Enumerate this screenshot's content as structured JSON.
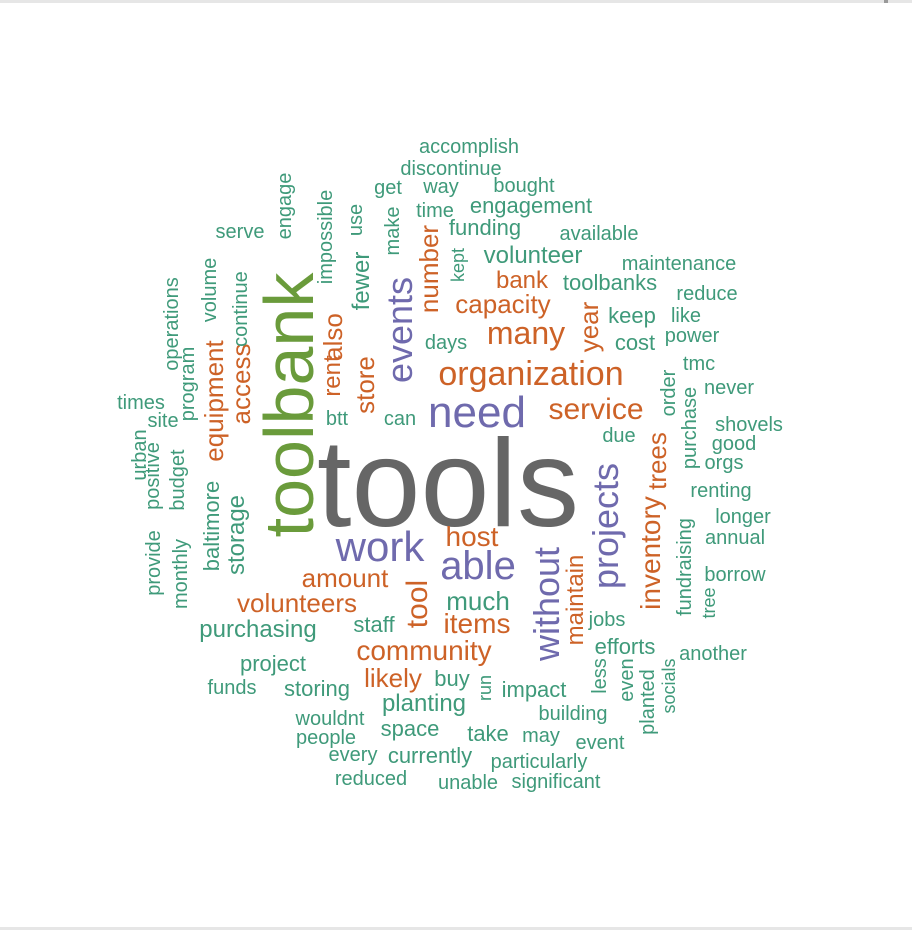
{
  "colors": {
    "top": "#666666",
    "green": "#6a9b3b",
    "purple": "#6f6aad",
    "orange": "#cd6227",
    "teal": "#3f9a7a"
  },
  "words": [
    {
      "text": "tools",
      "color": "top"
    },
    {
      "text": "toolbank",
      "color": "green"
    },
    {
      "text": "need",
      "color": "purple"
    },
    {
      "text": "work",
      "color": "purple"
    },
    {
      "text": "able",
      "color": "purple"
    },
    {
      "text": "events",
      "color": "purple"
    },
    {
      "text": "projects",
      "color": "purple"
    },
    {
      "text": "without",
      "color": "purple"
    },
    {
      "text": "organization",
      "color": "orange"
    },
    {
      "text": "service",
      "color": "orange"
    },
    {
      "text": "many",
      "color": "orange"
    },
    {
      "text": "capacity",
      "color": "orange"
    },
    {
      "text": "bank",
      "color": "orange"
    },
    {
      "text": "host",
      "color": "orange"
    },
    {
      "text": "amount",
      "color": "orange"
    },
    {
      "text": "volunteers",
      "color": "orange"
    },
    {
      "text": "items",
      "color": "orange"
    },
    {
      "text": "community",
      "color": "orange"
    },
    {
      "text": "likely",
      "color": "orange"
    },
    {
      "text": "tool",
      "color": "orange"
    },
    {
      "text": "maintain",
      "color": "orange"
    },
    {
      "text": "inventory",
      "color": "orange"
    },
    {
      "text": "trees",
      "color": "orange"
    },
    {
      "text": "year",
      "color": "orange"
    },
    {
      "text": "number",
      "color": "orange"
    },
    {
      "text": "also",
      "color": "orange"
    },
    {
      "text": "rent",
      "color": "orange"
    },
    {
      "text": "store",
      "color": "orange"
    },
    {
      "text": "equipment",
      "color": "orange"
    },
    {
      "text": "access",
      "color": "orange"
    },
    {
      "text": "accomplish",
      "color": "teal"
    },
    {
      "text": "discontinue",
      "color": "teal"
    },
    {
      "text": "get",
      "color": "teal"
    },
    {
      "text": "way",
      "color": "teal"
    },
    {
      "text": "bought",
      "color": "teal"
    },
    {
      "text": "time",
      "color": "teal"
    },
    {
      "text": "engagement",
      "color": "teal"
    },
    {
      "text": "funding",
      "color": "teal"
    },
    {
      "text": "available",
      "color": "teal"
    },
    {
      "text": "serve",
      "color": "teal"
    },
    {
      "text": "volunteer",
      "color": "teal"
    },
    {
      "text": "maintenance",
      "color": "teal"
    },
    {
      "text": "toolbanks",
      "color": "teal"
    },
    {
      "text": "reduce",
      "color": "teal"
    },
    {
      "text": "keep",
      "color": "teal"
    },
    {
      "text": "like",
      "color": "teal"
    },
    {
      "text": "power",
      "color": "teal"
    },
    {
      "text": "cost",
      "color": "teal"
    },
    {
      "text": "days",
      "color": "teal"
    },
    {
      "text": "tmc",
      "color": "teal"
    },
    {
      "text": "never",
      "color": "teal"
    },
    {
      "text": "times",
      "color": "teal"
    },
    {
      "text": "site",
      "color": "teal"
    },
    {
      "text": "btt",
      "color": "teal"
    },
    {
      "text": "can",
      "color": "teal"
    },
    {
      "text": "shovels",
      "color": "teal"
    },
    {
      "text": "good",
      "color": "teal"
    },
    {
      "text": "due",
      "color": "teal"
    },
    {
      "text": "orgs",
      "color": "teal"
    },
    {
      "text": "renting",
      "color": "teal"
    },
    {
      "text": "longer",
      "color": "teal"
    },
    {
      "text": "annual",
      "color": "teal"
    },
    {
      "text": "borrow",
      "color": "teal"
    },
    {
      "text": "much",
      "color": "teal"
    },
    {
      "text": "purchasing",
      "color": "teal"
    },
    {
      "text": "staff",
      "color": "teal"
    },
    {
      "text": "jobs",
      "color": "teal"
    },
    {
      "text": "efforts",
      "color": "teal"
    },
    {
      "text": "another",
      "color": "teal"
    },
    {
      "text": "project",
      "color": "teal"
    },
    {
      "text": "funds",
      "color": "teal"
    },
    {
      "text": "storing",
      "color": "teal"
    },
    {
      "text": "buy",
      "color": "teal"
    },
    {
      "text": "impact",
      "color": "teal"
    },
    {
      "text": "planting",
      "color": "teal"
    },
    {
      "text": "wouldnt",
      "color": "teal"
    },
    {
      "text": "space",
      "color": "teal"
    },
    {
      "text": "building",
      "color": "teal"
    },
    {
      "text": "people",
      "color": "teal"
    },
    {
      "text": "take",
      "color": "teal"
    },
    {
      "text": "may",
      "color": "teal"
    },
    {
      "text": "event",
      "color": "teal"
    },
    {
      "text": "every",
      "color": "teal"
    },
    {
      "text": "currently",
      "color": "teal"
    },
    {
      "text": "particularly",
      "color": "teal"
    },
    {
      "text": "reduced",
      "color": "teal"
    },
    {
      "text": "unable",
      "color": "teal"
    },
    {
      "text": "significant",
      "color": "teal"
    },
    {
      "text": "engage",
      "color": "teal"
    },
    {
      "text": "impossible",
      "color": "teal"
    },
    {
      "text": "use",
      "color": "teal"
    },
    {
      "text": "make",
      "color": "teal"
    },
    {
      "text": "kept",
      "color": "teal"
    },
    {
      "text": "fewer",
      "color": "teal"
    },
    {
      "text": "operations",
      "color": "teal"
    },
    {
      "text": "volume",
      "color": "teal"
    },
    {
      "text": "continue",
      "color": "teal"
    },
    {
      "text": "program",
      "color": "teal"
    },
    {
      "text": "urban",
      "color": "teal"
    },
    {
      "text": "positive",
      "color": "teal"
    },
    {
      "text": "budget",
      "color": "teal"
    },
    {
      "text": "provide",
      "color": "teal"
    },
    {
      "text": "monthly",
      "color": "teal"
    },
    {
      "text": "baltimore",
      "color": "teal"
    },
    {
      "text": "storage",
      "color": "teal"
    },
    {
      "text": "order",
      "color": "teal"
    },
    {
      "text": "purchase",
      "color": "teal"
    },
    {
      "text": "fundraising",
      "color": "teal"
    },
    {
      "text": "tree",
      "color": "teal"
    },
    {
      "text": "less",
      "color": "teal"
    },
    {
      "text": "even",
      "color": "teal"
    },
    {
      "text": "planted",
      "color": "teal"
    },
    {
      "text": "socials",
      "color": "teal"
    },
    {
      "text": "run",
      "color": "teal"
    }
  ]
}
